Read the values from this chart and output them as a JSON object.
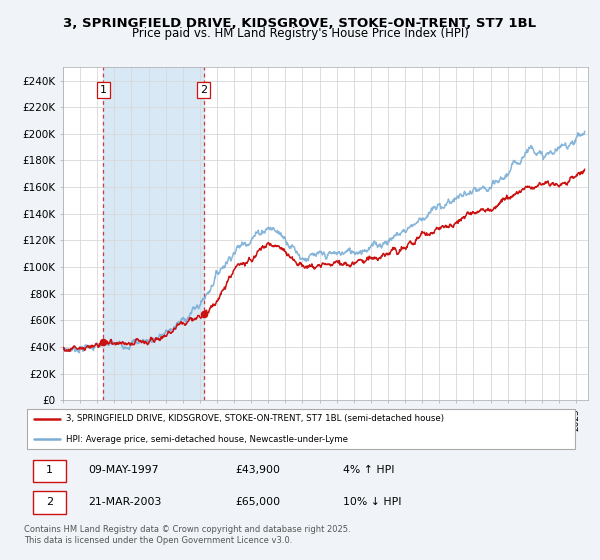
{
  "title": "3, SPRINGFIELD DRIVE, KIDSGROVE, STOKE-ON-TRENT, ST7 1BL",
  "subtitle": "Price paid vs. HM Land Registry's House Price Index (HPI)",
  "ylim": [
    0,
    250000
  ],
  "yticks": [
    0,
    20000,
    40000,
    60000,
    80000,
    100000,
    120000,
    140000,
    160000,
    180000,
    200000,
    220000,
    240000
  ],
  "ytick_labels": [
    "£0",
    "£20K",
    "£40K",
    "£60K",
    "£80K",
    "£100K",
    "£120K",
    "£140K",
    "£160K",
    "£180K",
    "£200K",
    "£220K",
    "£240K"
  ],
  "hpi_color": "#7aaed6",
  "price_color": "#cc1111",
  "purchase1_date": 1997.36,
  "purchase1_price": 43900,
  "purchase1_label": "1",
  "purchase2_date": 2003.22,
  "purchase2_price": 65000,
  "purchase2_label": "2",
  "legend_entry1": "3, SPRINGFIELD DRIVE, KIDSGROVE, STOKE-ON-TRENT, ST7 1BL (semi-detached house)",
  "legend_entry2": "HPI: Average price, semi-detached house, Newcastle-under-Lyme",
  "table_row1": [
    "1",
    "09-MAY-1997",
    "£43,900",
    "4% ↑ HPI"
  ],
  "table_row2": [
    "2",
    "21-MAR-2003",
    "£65,000",
    "10% ↓ HPI"
  ],
  "footer": "Contains HM Land Registry data © Crown copyright and database right 2025.\nThis data is licensed under the Open Government Licence v3.0.",
  "bg_shaded_start": 1997.36,
  "bg_shaded_end": 2003.22,
  "title_fontsize": 9.5,
  "subtitle_fontsize": 8.5,
  "tick_fontsize": 7.5,
  "xlim_start": 1995.0,
  "xlim_end": 2025.7,
  "fig_bg": "#f0f4f8",
  "plot_bg": "#ffffff",
  "shade_color": "#d8e8f5"
}
